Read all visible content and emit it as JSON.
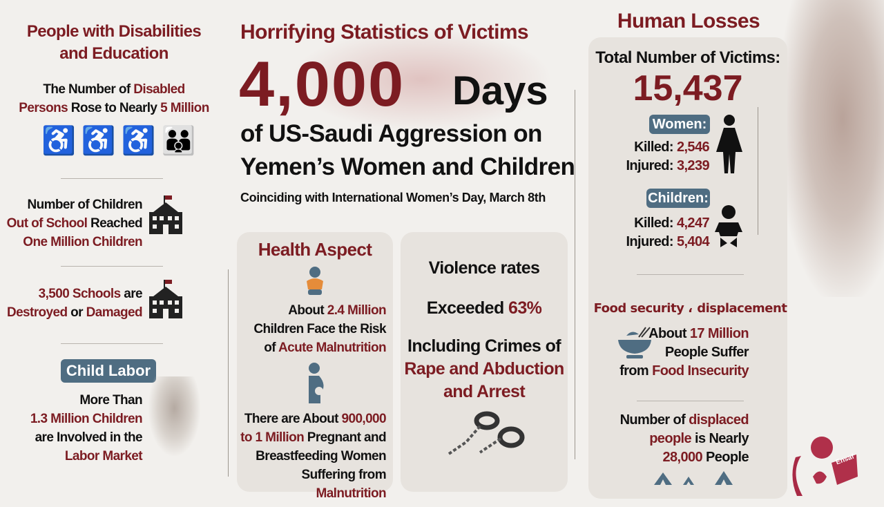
{
  "left": {
    "title_line1": "People with Disabilities",
    "title_line2": "and Education",
    "disabled": {
      "a": "The Number of ",
      "b": "Disabled",
      "c": "Persons",
      "d": " Rose to Nearly ",
      "e": "5 Million"
    },
    "out_of_school": {
      "l1": "Number of Children",
      "l2a": "Out of School",
      "l2b": " Reached",
      "l3": "One Million Children"
    },
    "schools": {
      "l1a": "3,500 Schools",
      "l1b": " are",
      "l2a": "Destroyed",
      "l2b": " or ",
      "l2c": "Damaged"
    },
    "child_labor": {
      "badge": "Child Labor",
      "l1": "More Than",
      "l2": "1.3 Million Children",
      "l3": "are Involved in the",
      "l4": "Labor Market"
    }
  },
  "center": {
    "title": "Horrifying Statistics of Victims",
    "big_number": "4,000",
    "days": "Days",
    "headline1": "of US-Saudi Aggression on",
    "headline2": "Yemen’s Women and Children",
    "subtitle": "Coinciding with International Women’s Day, March 8th",
    "health": {
      "title": "Health Aspect",
      "p1": {
        "a": "About ",
        "b": "2.4 Million",
        "c": "Children Face the Risk",
        "d": "of ",
        "e": "Acute Malnutrition"
      },
      "p2": {
        "a": "There are About ",
        "b": "900,000",
        "c": "to 1 Million",
        "d": " Pregnant and",
        "e": "Breastfeeding Women",
        "f": "Suffering from ",
        "g": "Malnutrition"
      }
    },
    "violence": {
      "l1": "Violence rates",
      "l2a": "Exceeded ",
      "l2b": "63%",
      "l3": "Including Crimes of",
      "l4": "Rape and Abduction",
      "l5": "and Arrest"
    }
  },
  "right": {
    "title": "Human Losses",
    "total_label": "Total Number of Victims:",
    "total": "15,437",
    "women": {
      "badge": "Women:",
      "killed_label": "Killed: ",
      "killed": "2,546",
      "injured_label": "Injured: ",
      "injured": "3,239"
    },
    "children": {
      "badge": "Children:",
      "killed_label": "Killed: ",
      "killed": "4,247",
      "injured_label": "Injured: ",
      "injured": "5,404"
    },
    "food_title": "Food security ، displacement",
    "food": {
      "a": "About ",
      "b": "17 Million",
      "c": "People Suffer",
      "d": "from ",
      "e": "Food Insecurity"
    },
    "displaced": {
      "a": "Number of ",
      "b": "displaced",
      "c": "people",
      "d": " is Nearly",
      "e": "28,000",
      "f": " People"
    }
  },
  "logo_text": "Ensaf",
  "colors": {
    "accent": "#7c1c22",
    "badge": "#4f6d82",
    "background": "#f2f0ed",
    "card": "#e7e3de"
  }
}
